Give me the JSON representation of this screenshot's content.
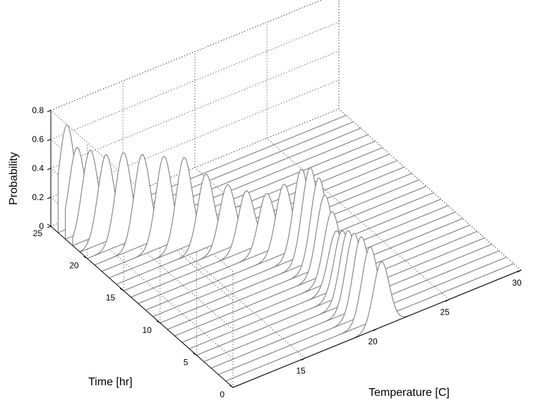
{
  "chart_data": {
    "type": "line",
    "subtype": "waterfall-3d",
    "xlabel": "Temperature [C]",
    "ylabel": "Time [hr]",
    "zlabel": "Probability",
    "xlim": [
      10,
      30
    ],
    "ylim": [
      0,
      25
    ],
    "zlim": [
      0,
      0.8
    ],
    "xticks": [
      15,
      20,
      25,
      30
    ],
    "yticks": [
      0,
      5,
      10,
      15,
      20,
      25
    ],
    "zticks": [
      0,
      0.2,
      0.4,
      0.6,
      0.8
    ],
    "grid": true,
    "line_color": "#808080",
    "distributions": {
      "description_of_values": "each time slice is a gaussian-shaped probability curve over temperature",
      "times": [
        0,
        1,
        2,
        3,
        4,
        5,
        6,
        7,
        8,
        9,
        10,
        11,
        12,
        13,
        14,
        15,
        16,
        17,
        18,
        19,
        20,
        21,
        22,
        23,
        24
      ],
      "means": [
        20.3,
        20.0,
        19.9,
        19.9,
        20.0,
        20.1,
        20.2,
        20.4,
        20.4,
        20.5,
        20.4,
        20.3,
        19.6,
        18.9,
        18.0,
        17.2,
        16.2,
        15.2,
        14.3,
        13.3,
        12.5,
        11.8,
        11.2,
        10.8,
        10.6
      ],
      "peaks": [
        0.45,
        0.52,
        0.55,
        0.53,
        0.5,
        0.45,
        0.4,
        0.48,
        0.55,
        0.62,
        0.65,
        0.6,
        0.48,
        0.4,
        0.41,
        0.44,
        0.51,
        0.62,
        0.62,
        0.63,
        0.63,
        0.6,
        0.61,
        0.6,
        0.72
      ],
      "sigmas": [
        0.55,
        0.55,
        0.55,
        0.55,
        0.55,
        0.55,
        0.55,
        0.55,
        0.55,
        0.55,
        0.55,
        0.55,
        0.55,
        0.55,
        0.55,
        0.55,
        0.55,
        0.55,
        0.55,
        0.55,
        0.55,
        0.55,
        0.55,
        0.55,
        0.55
      ]
    }
  }
}
